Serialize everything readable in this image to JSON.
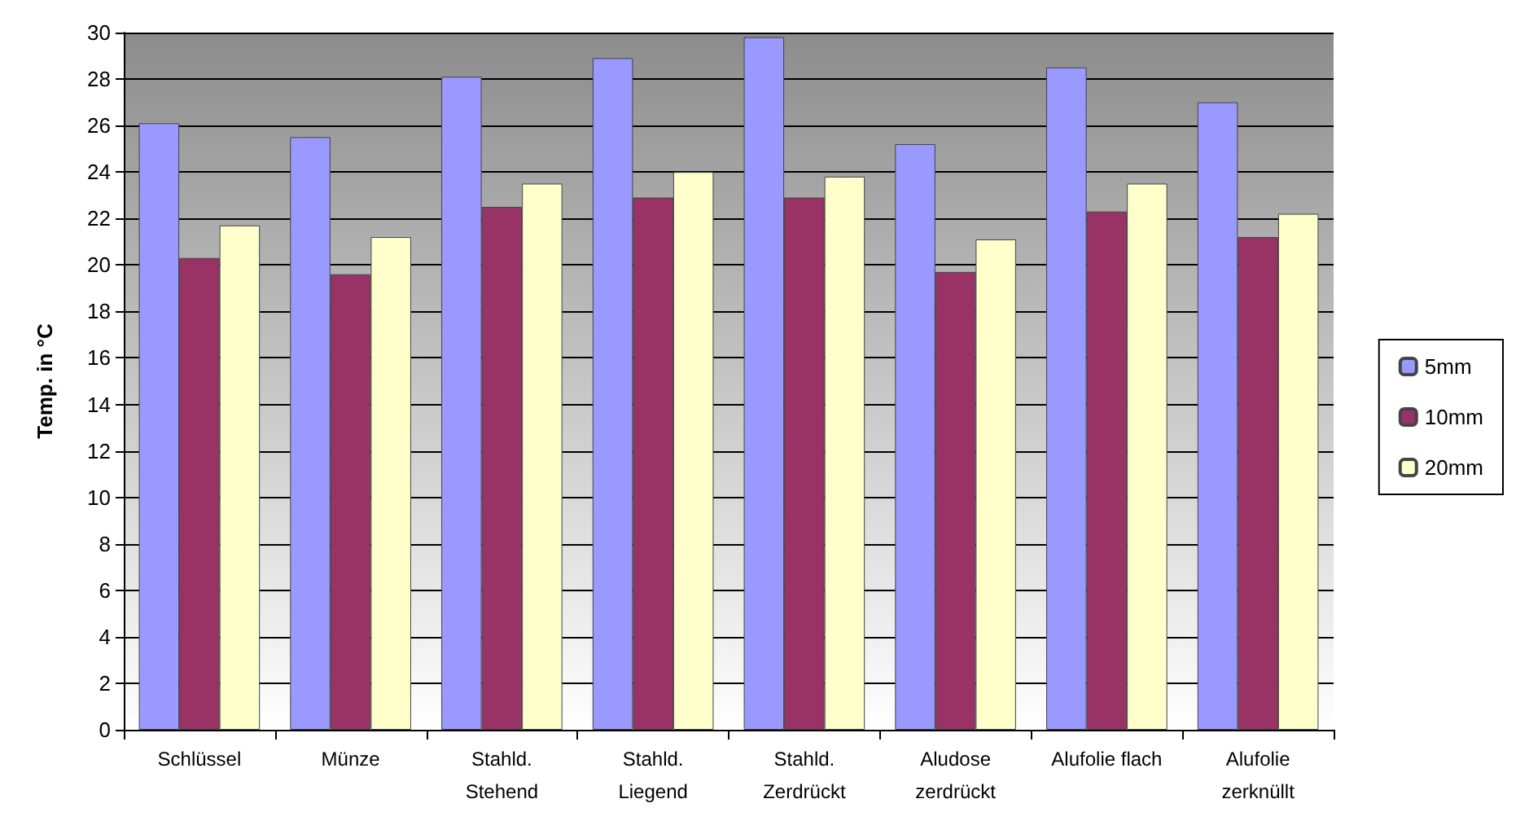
{
  "chart_data": {
    "type": "bar",
    "ylabel": "Temp. in °C",
    "categories": [
      "Schlüssel",
      "Münze",
      "Stahld.\nStehend",
      "Stahld.\nLiegend",
      "Stahld.\nZerdrückt",
      "Aludose\nzerdrückt",
      "Alufolie flach",
      "Alufolie\nzerknüllt"
    ],
    "series": [
      {
        "name": "5mm",
        "color": "#9999ff",
        "values": [
          26.1,
          25.5,
          28.1,
          28.9,
          29.8,
          25.2,
          28.5,
          27.0
        ]
      },
      {
        "name": "10mm",
        "color": "#993366",
        "values": [
          20.3,
          19.6,
          22.5,
          22.9,
          22.9,
          19.7,
          22.3,
          21.2
        ]
      },
      {
        "name": "20mm",
        "color": "#ffffcc",
        "values": [
          21.7,
          21.2,
          23.5,
          24.0,
          23.8,
          21.1,
          23.5,
          22.2
        ]
      }
    ],
    "ylim": [
      0,
      30
    ],
    "yticks": [
      0,
      2,
      4,
      6,
      8,
      10,
      12,
      14,
      16,
      18,
      20,
      22,
      24,
      26,
      28,
      30
    ],
    "grid": "y",
    "legend": "right"
  }
}
